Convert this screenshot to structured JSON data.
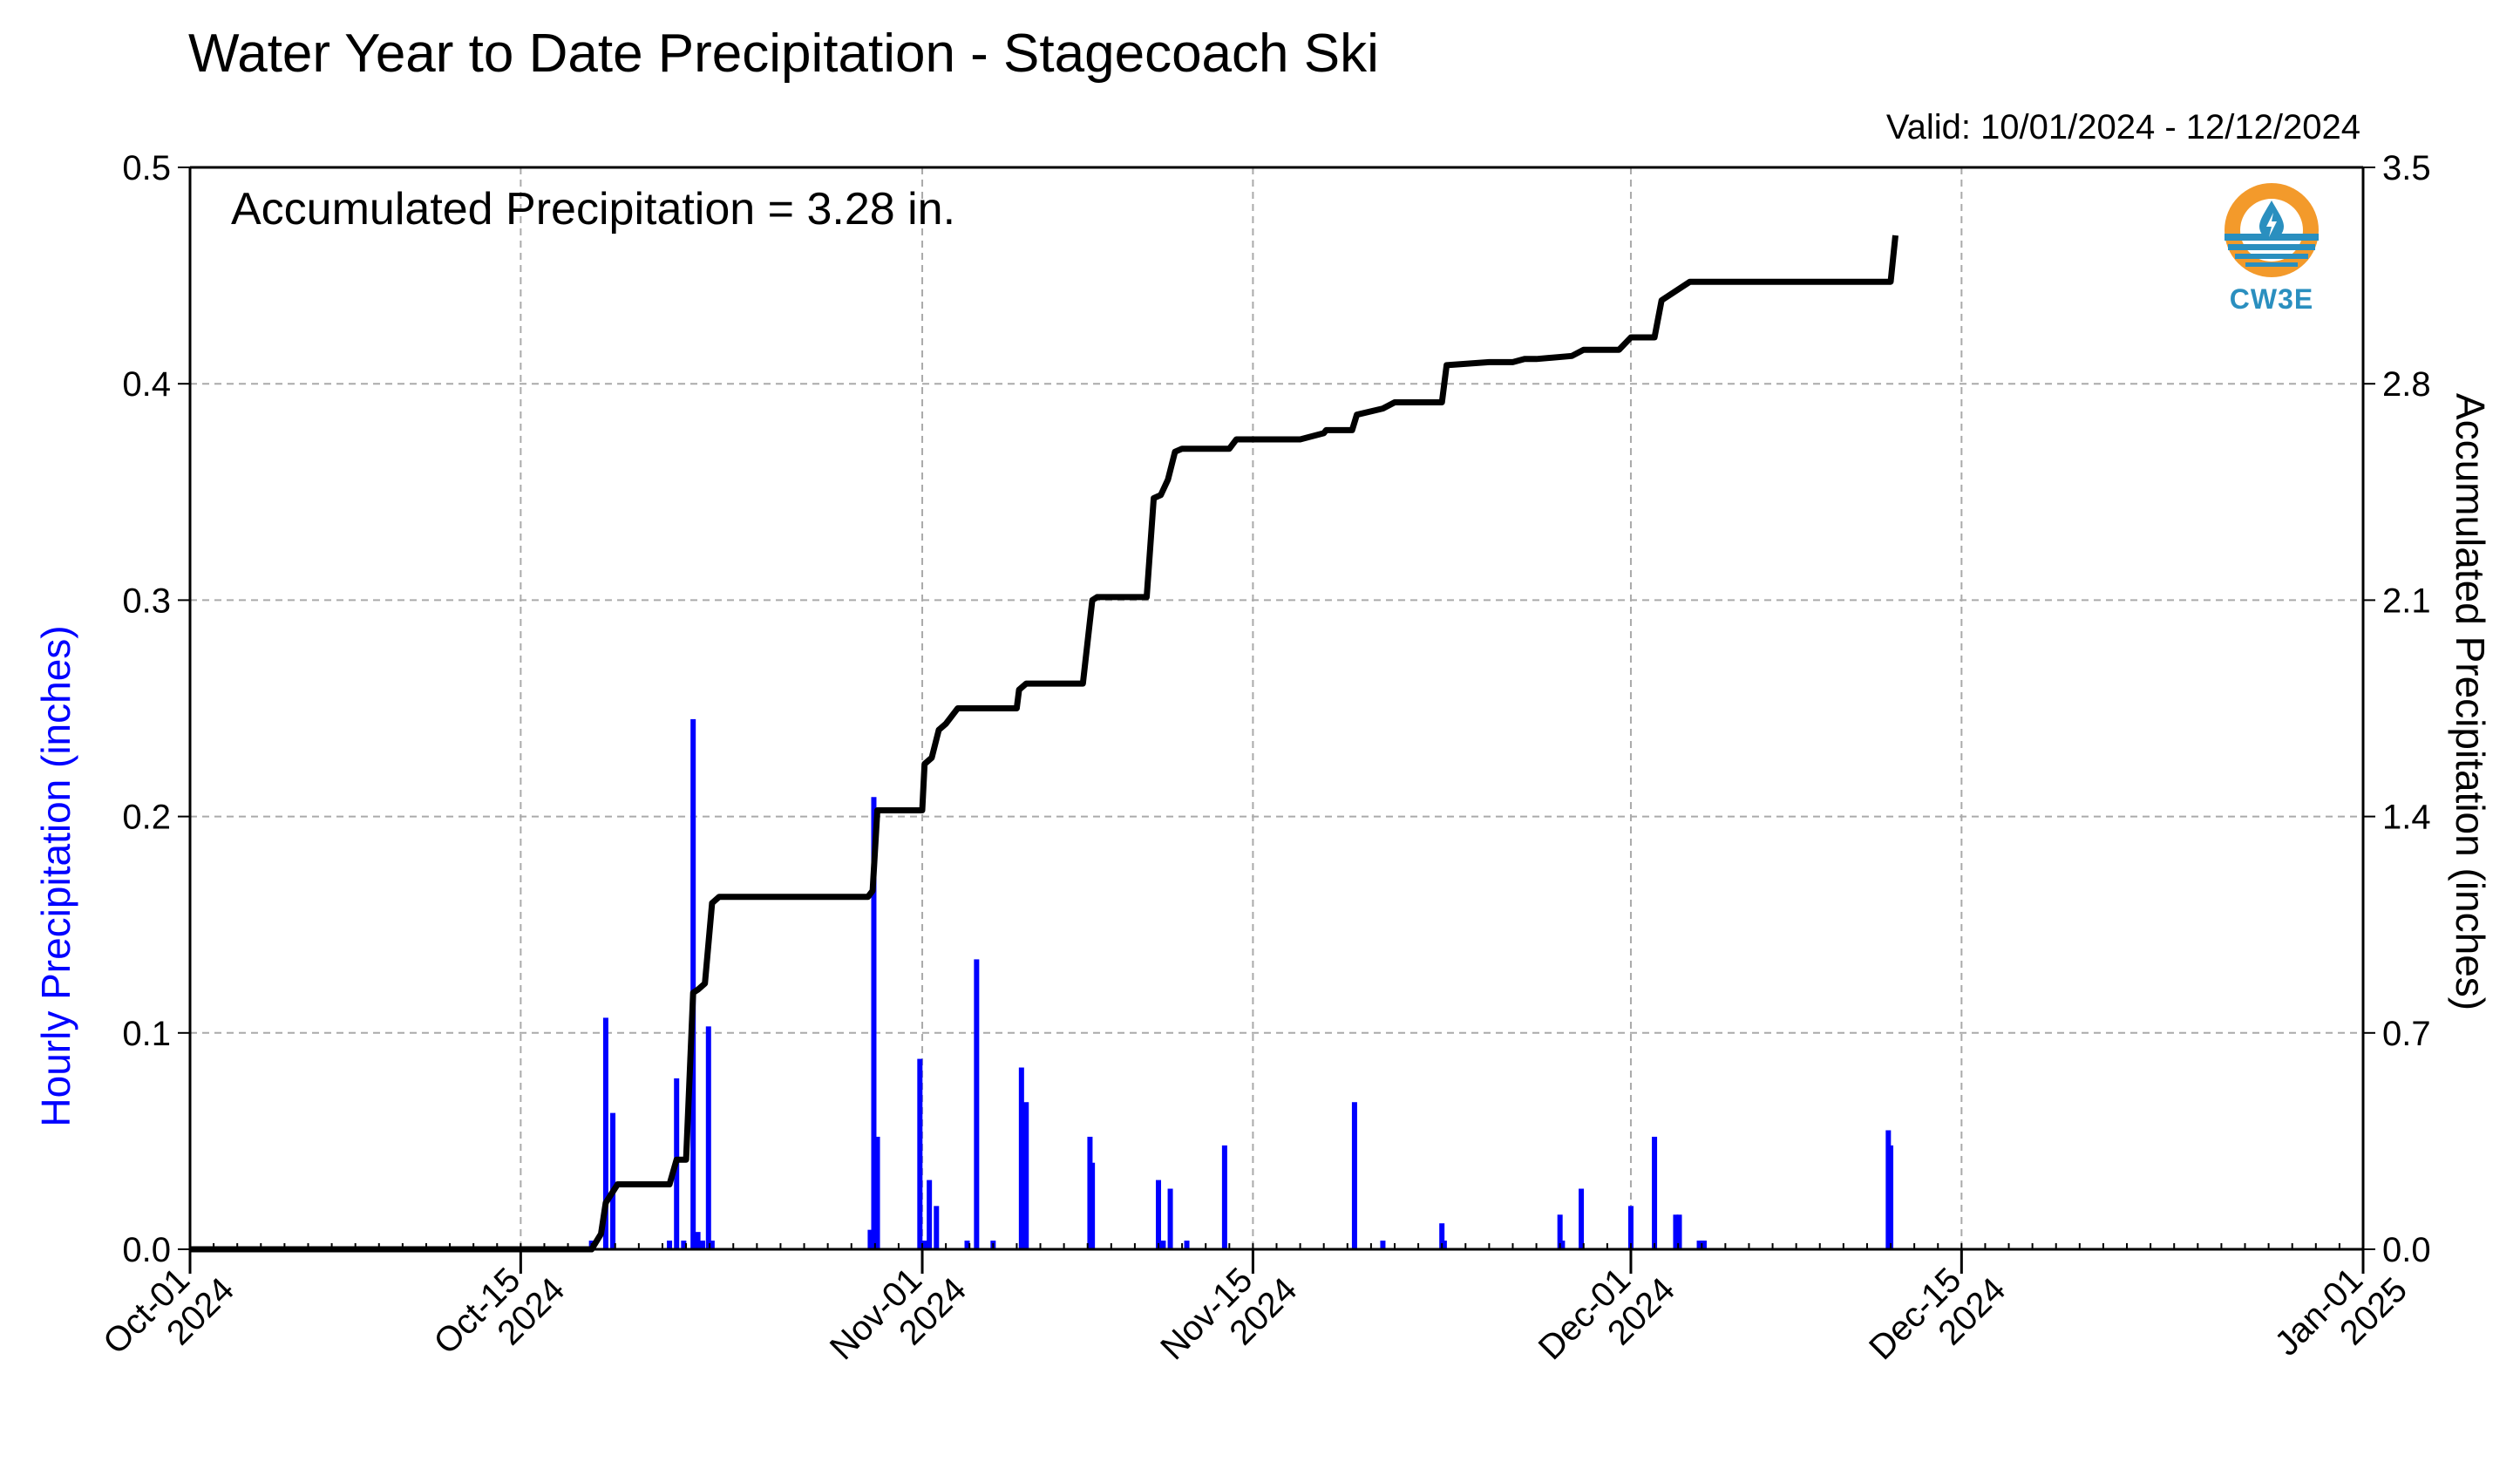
{
  "header": {
    "title": "Water Year to Date Precipitation - Stagecoach Ski",
    "valid": "Valid: 10/01/2024 - 12/12/2024",
    "accumulated_text": "Accumulated Precipitation = 3.28 in."
  },
  "logo": {
    "label": "CW3E",
    "icon": "cw3e-logo-icon"
  },
  "colors": {
    "hourly": "#0000ff",
    "accumulated": "#000000",
    "grid": "#aaaaaa",
    "logo_orange": "#f39a2b",
    "logo_blue": "#2a8fbf"
  },
  "chart_data": {
    "type": "bar+line",
    "title": "Water Year to Date Precipitation - Stagecoach Ski",
    "subtitle": "Valid: 10/01/2024 - 12/12/2024",
    "annotation": "Accumulated Precipitation = 3.28 in.",
    "ylabel_left": "Hourly Precipitation (inches)",
    "ylabel_right": "Accumulated Precipitation (inches)",
    "ylim_left": [
      0,
      0.5
    ],
    "ylim_right": [
      0,
      3.5
    ],
    "yticks_left": [
      "0.0",
      "0.1",
      "0.2",
      "0.3",
      "0.4",
      "0.5"
    ],
    "yticks_right": [
      "0.0",
      "0.7",
      "1.4",
      "2.1",
      "2.8",
      "3.5"
    ],
    "xticks": [
      {
        "day": 0,
        "line1": "Oct-01",
        "line2": "2024"
      },
      {
        "day": 14,
        "line1": "Oct-15",
        "line2": "2024"
      },
      {
        "day": 31,
        "line1": "Nov-01",
        "line2": "2024"
      },
      {
        "day": 45,
        "line1": "Nov-15",
        "line2": "2024"
      },
      {
        "day": 61,
        "line1": "Dec-01",
        "line2": "2024"
      },
      {
        "day": 75,
        "line1": "Dec-15",
        "line2": "2024"
      },
      {
        "day": 92,
        "line1": "Jan-01",
        "line2": "2025"
      }
    ],
    "x_range_days": [
      0,
      92
    ],
    "x_units": "days since 2024-10-01",
    "grid": true,
    "hourly_series": {
      "name": "Hourly Precipitation (inches)",
      "x": [
        17.0,
        17.6,
        17.9,
        20.3,
        20.6,
        20.9,
        21.3,
        21.5,
        21.7,
        21.95,
        22.1,
        28.8,
        28.95,
        29.1,
        30.9,
        31.1,
        31.3,
        31.6,
        32.9,
        33.3,
        34.0,
        35.2,
        35.4,
        38.1,
        38.2,
        41.0,
        41.2,
        41.5,
        42.2,
        43.8,
        49.3,
        50.5,
        53.0,
        53.1,
        58.0,
        58.1,
        58.9,
        61.0,
        62.0,
        62.9,
        63.05,
        63.9,
        64.0,
        64.1,
        71.9,
        72.0
      ],
      "values": [
        0.004,
        0.107,
        0.063,
        0.004,
        0.079,
        0.004,
        0.245,
        0.008,
        0.004,
        0.103,
        0.004,
        0.009,
        0.209,
        0.052,
        0.088,
        0.004,
        0.032,
        0.02,
        0.004,
        0.134,
        0.004,
        0.084,
        0.068,
        0.052,
        0.04,
        0.032,
        0.004,
        0.028,
        0.004,
        0.048,
        0.068,
        0.004,
        0.012,
        0.004,
        0.016,
        0.004,
        0.028,
        0.02,
        0.052,
        0.016,
        0.016,
        0.004,
        0.004,
        0.004,
        0.055,
        0.048
      ]
    },
    "accumulated_series": {
      "name": "Accumulated Precipitation (inches)",
      "x": [
        0,
        17.0,
        17.4,
        17.6,
        18.1,
        19.0,
        20.3,
        20.6,
        21.0,
        21.3,
        21.5,
        21.8,
        22.1,
        22.4,
        28.7,
        28.9,
        29.1,
        31.0,
        31.1,
        31.4,
        31.7,
        32.0,
        32.5,
        35.0,
        35.1,
        35.4,
        37.8,
        38.2,
        38.4,
        40.5,
        40.8,
        41.1,
        41.4,
        41.7,
        42.0,
        44.0,
        44.3,
        46.0,
        47.0,
        48.0,
        48.1,
        49.2,
        49.4,
        50.5,
        51.0,
        53.0,
        53.2,
        55.0,
        56.0,
        56.5,
        57.0,
        58.5,
        59.0,
        60.5,
        61.0,
        62.0,
        62.3,
        63.5,
        72.0,
        72.2
      ],
      "values": [
        0,
        0,
        0.05,
        0.15,
        0.21,
        0.21,
        0.21,
        0.29,
        0.29,
        0.83,
        0.84,
        0.86,
        1.12,
        1.14,
        1.14,
        1.16,
        1.42,
        1.42,
        1.57,
        1.59,
        1.68,
        1.7,
        1.75,
        1.75,
        1.81,
        1.83,
        1.83,
        2.1,
        2.11,
        2.11,
        2.43,
        2.44,
        2.49,
        2.58,
        2.59,
        2.59,
        2.62,
        2.62,
        2.62,
        2.64,
        2.65,
        2.65,
        2.7,
        2.72,
        2.74,
        2.74,
        2.86,
        2.87,
        2.87,
        2.88,
        2.88,
        2.89,
        2.91,
        2.91,
        2.95,
        2.95,
        3.07,
        3.13,
        3.13,
        3.28
      ]
    }
  }
}
